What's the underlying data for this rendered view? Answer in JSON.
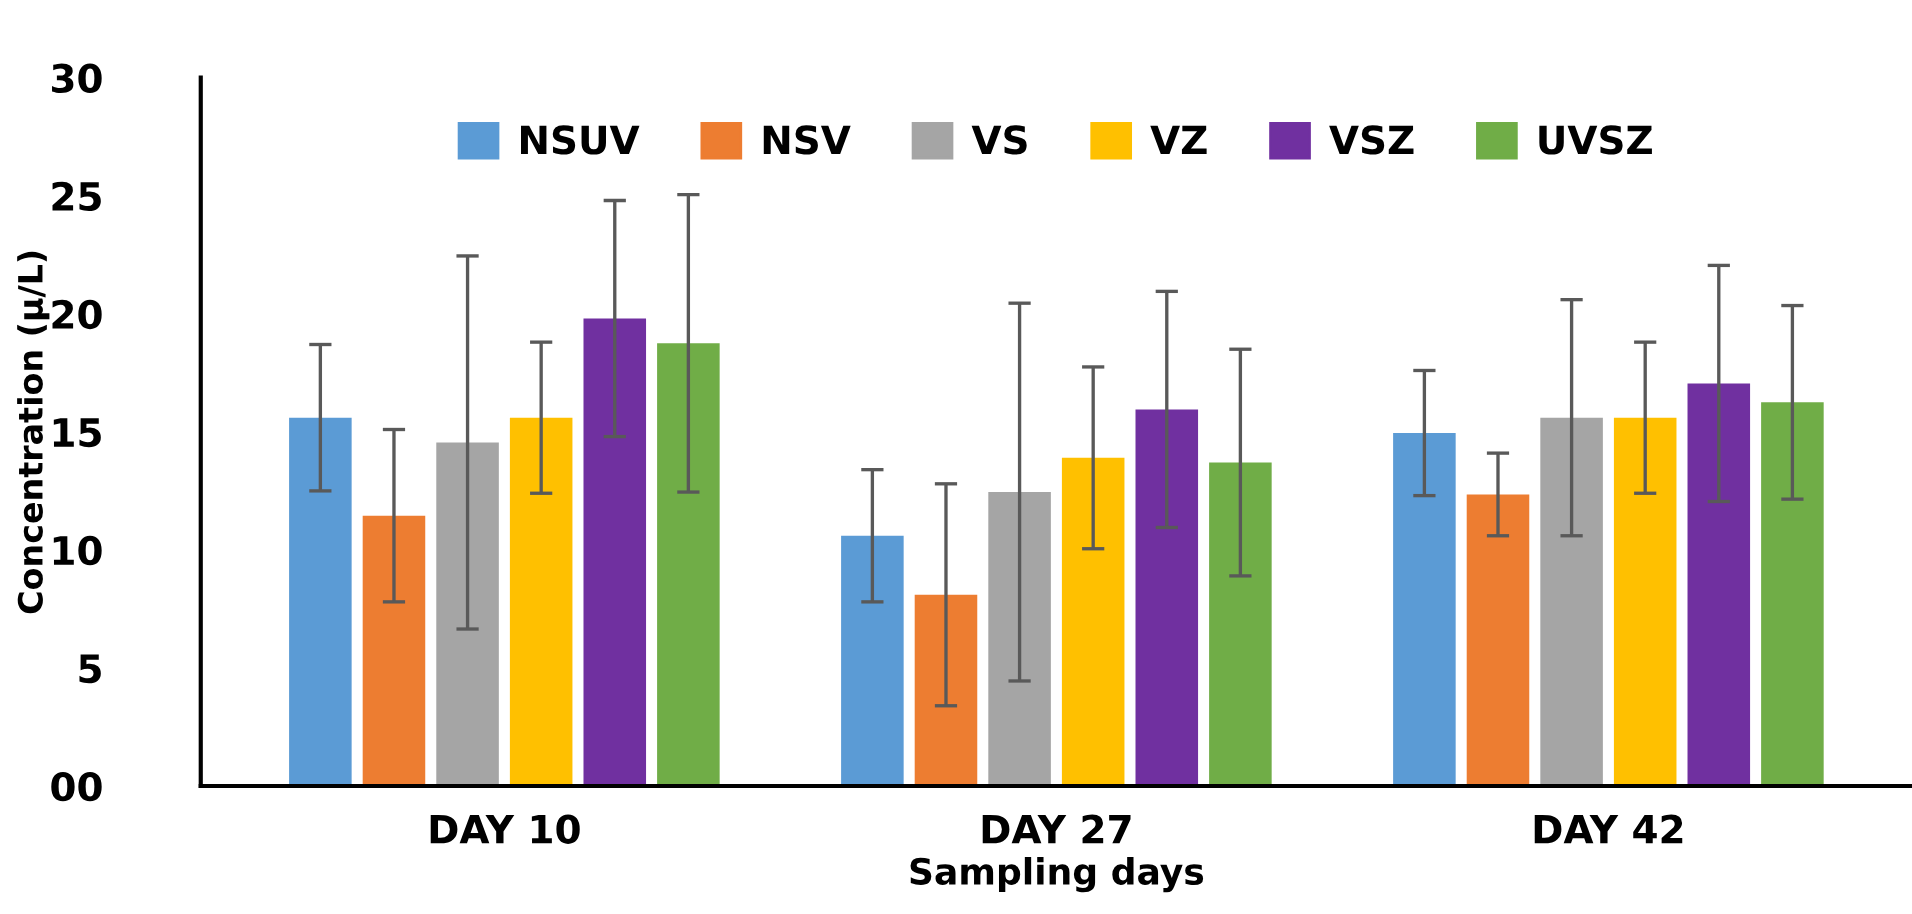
{
  "chart_data": {
    "type": "bar",
    "xlabel": "Sampling days",
    "ylabel": "Concentration (μ/L)",
    "categories": [
      "DAY 10",
      "DAY 27",
      "DAY 42"
    ],
    "series": [
      {
        "name": "NSUV",
        "color": "#5b9bd5",
        "values": [
          15.6,
          10.6,
          14.95
        ],
        "errors": [
          3.1,
          2.8,
          2.65
        ]
      },
      {
        "name": "NSV",
        "color": "#ed7d31",
        "values": [
          11.45,
          8.1,
          12.35
        ],
        "errors": [
          3.65,
          4.7,
          1.75
        ]
      },
      {
        "name": "VS",
        "color": "#a5a5a5",
        "values": [
          14.55,
          12.45,
          15.6
        ],
        "errors": [
          7.9,
          8,
          5
        ]
      },
      {
        "name": "VZ",
        "color": "#ffc000",
        "values": [
          15.6,
          13.9,
          15.6
        ],
        "errors": [
          3.2,
          3.85,
          3.2
        ]
      },
      {
        "name": "VSZ",
        "color": "#7030a0",
        "values": [
          19.8,
          15.95,
          17.05
        ],
        "errors": [
          5,
          5,
          5
        ]
      },
      {
        "name": "UVSZ",
        "color": "#70ad47",
        "values": [
          18.75,
          13.7,
          16.25
        ],
        "errors": [
          6.3,
          4.8,
          4.1
        ]
      }
    ],
    "ylim": [
      0,
      30
    ],
    "yticks": [
      {
        "value": 0,
        "label": "00"
      },
      5,
      10,
      15,
      20,
      25,
      30
    ],
    "grid": false,
    "legend": "top"
  }
}
